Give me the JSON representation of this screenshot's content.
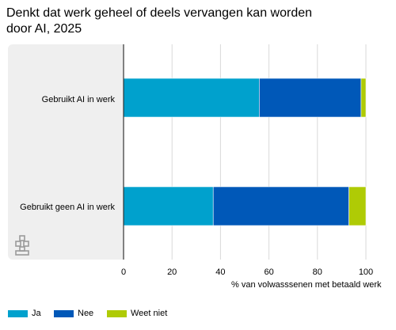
{
  "title": "Denkt dat werk geheel of deels vervangen kan worden door AI, 2025",
  "chart_data": {
    "type": "bar",
    "orientation": "horizontal",
    "stacked": true,
    "categories": [
      "Gebruikt AI in werk",
      "Gebruikt geen AI in werk"
    ],
    "series": [
      {
        "name": "Ja",
        "color": "#00a1cd",
        "values": [
          56,
          37
        ]
      },
      {
        "name": "Nee",
        "color": "#0058b8",
        "values": [
          42,
          56
        ]
      },
      {
        "name": "Weet niet",
        "color": "#afcb05",
        "values": [
          2,
          7
        ]
      }
    ],
    "xlim": [
      0,
      100
    ],
    "xticks": [
      "0",
      "20",
      "40",
      "60",
      "80",
      "100"
    ],
    "xlabel": "% van volwasssenen met betaald werk",
    "grid": true,
    "legend": "bottom"
  }
}
